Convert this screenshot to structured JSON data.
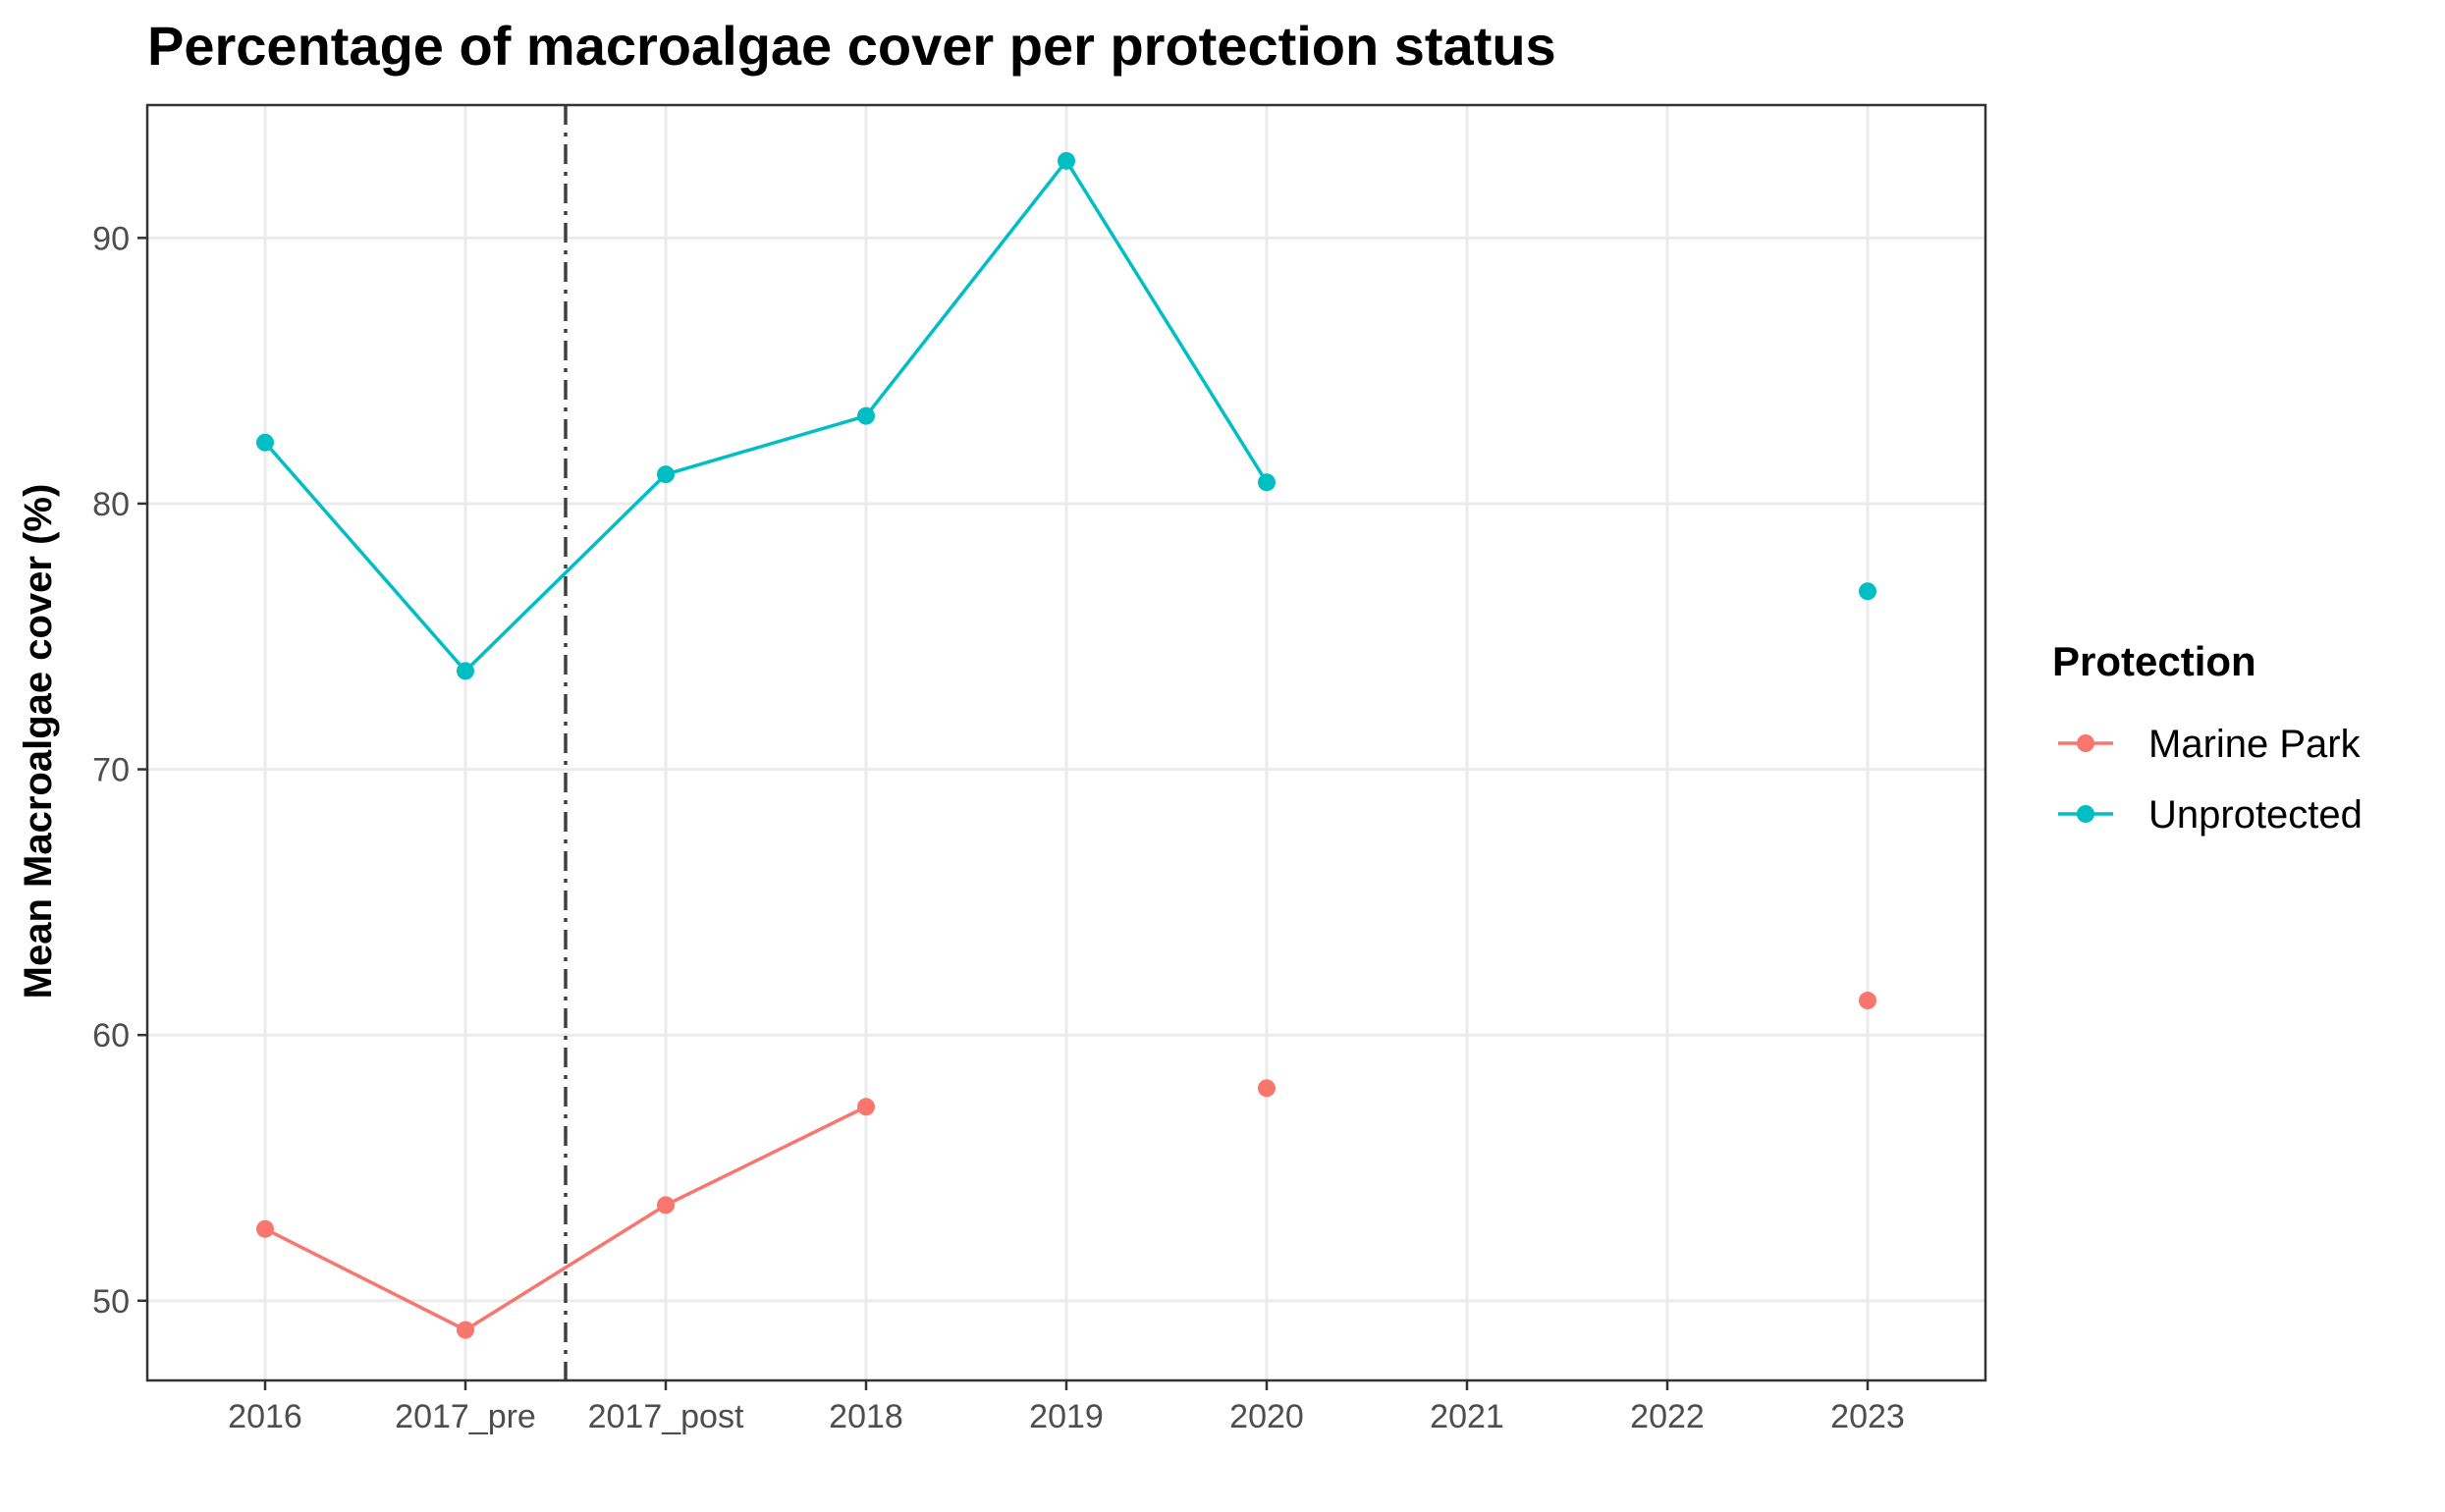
{
  "chart_data": {
    "type": "line",
    "title": "Percentage of macroalgae cover per protection status",
    "xlabel": "",
    "ylabel": "Mean Macroalgae cover (%)",
    "categories": [
      "2016",
      "2017_pre",
      "2017_post",
      "2018",
      "2019",
      "2020",
      "2021",
      "2022",
      "2023"
    ],
    "ylim": [
      47,
      95
    ],
    "yticks": [
      50,
      60,
      70,
      80,
      90
    ],
    "grid": true,
    "vline": {
      "between": [
        "2017_pre",
        "2017_post"
      ],
      "style": "dashdot",
      "color": "#404040"
    },
    "legend": {
      "title": "Protection",
      "position": "right"
    },
    "series": [
      {
        "name": "Marine Park",
        "color": "#F8766D",
        "values": [
          52.7,
          48.9,
          53.6,
          57.3,
          null,
          58.0,
          null,
          null,
          61.3
        ]
      },
      {
        "name": "Unprotected",
        "color": "#00BFC4",
        "values": [
          82.3,
          73.7,
          81.1,
          83.3,
          92.9,
          80.8,
          null,
          null,
          76.7
        ]
      }
    ]
  }
}
